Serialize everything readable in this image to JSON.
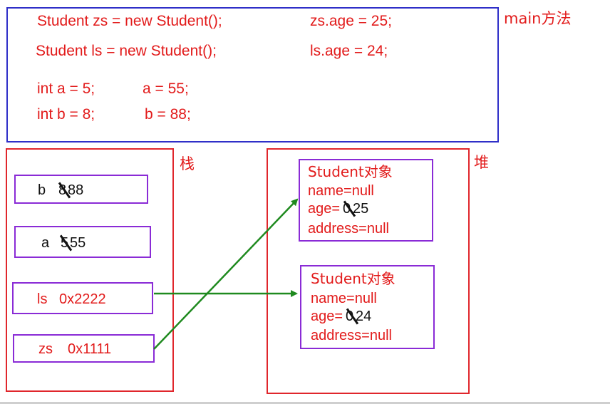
{
  "main": {
    "label": "main方法",
    "code": [
      "Student zs = new Student();",
      "zs.age = 25;",
      "Student ls = new Student();",
      "ls.age = 24;",
      "int a = 5;",
      "a = 55;",
      "int b = 8;",
      "b = 88;"
    ]
  },
  "stack": {
    "label": "栈",
    "cells": [
      {
        "name": "b",
        "old": "8",
        "new": "88"
      },
      {
        "name": "a",
        "old": "5",
        "new": "55"
      },
      {
        "name": "ls",
        "value": "0x2222"
      },
      {
        "name": "zs",
        "value": "0x1111"
      }
    ]
  },
  "heap": {
    "label": "堆",
    "objects": [
      {
        "title": "Student对象",
        "name": "name=null",
        "age_prefix": "age=",
        "age_old": "0",
        "age_new": "25",
        "address": "address=null"
      },
      {
        "title": "Student对象",
        "name": "name=null",
        "age_prefix": "age=",
        "age_old": "0",
        "age_new": "24",
        "address": "address=null"
      }
    ]
  },
  "colors": {
    "main_border": "#2f2fc8",
    "region_border": "#e0262c",
    "cell_border": "#8a2bd6",
    "code_text": "#e21b1b",
    "arrow": "#1f8a1f"
  }
}
